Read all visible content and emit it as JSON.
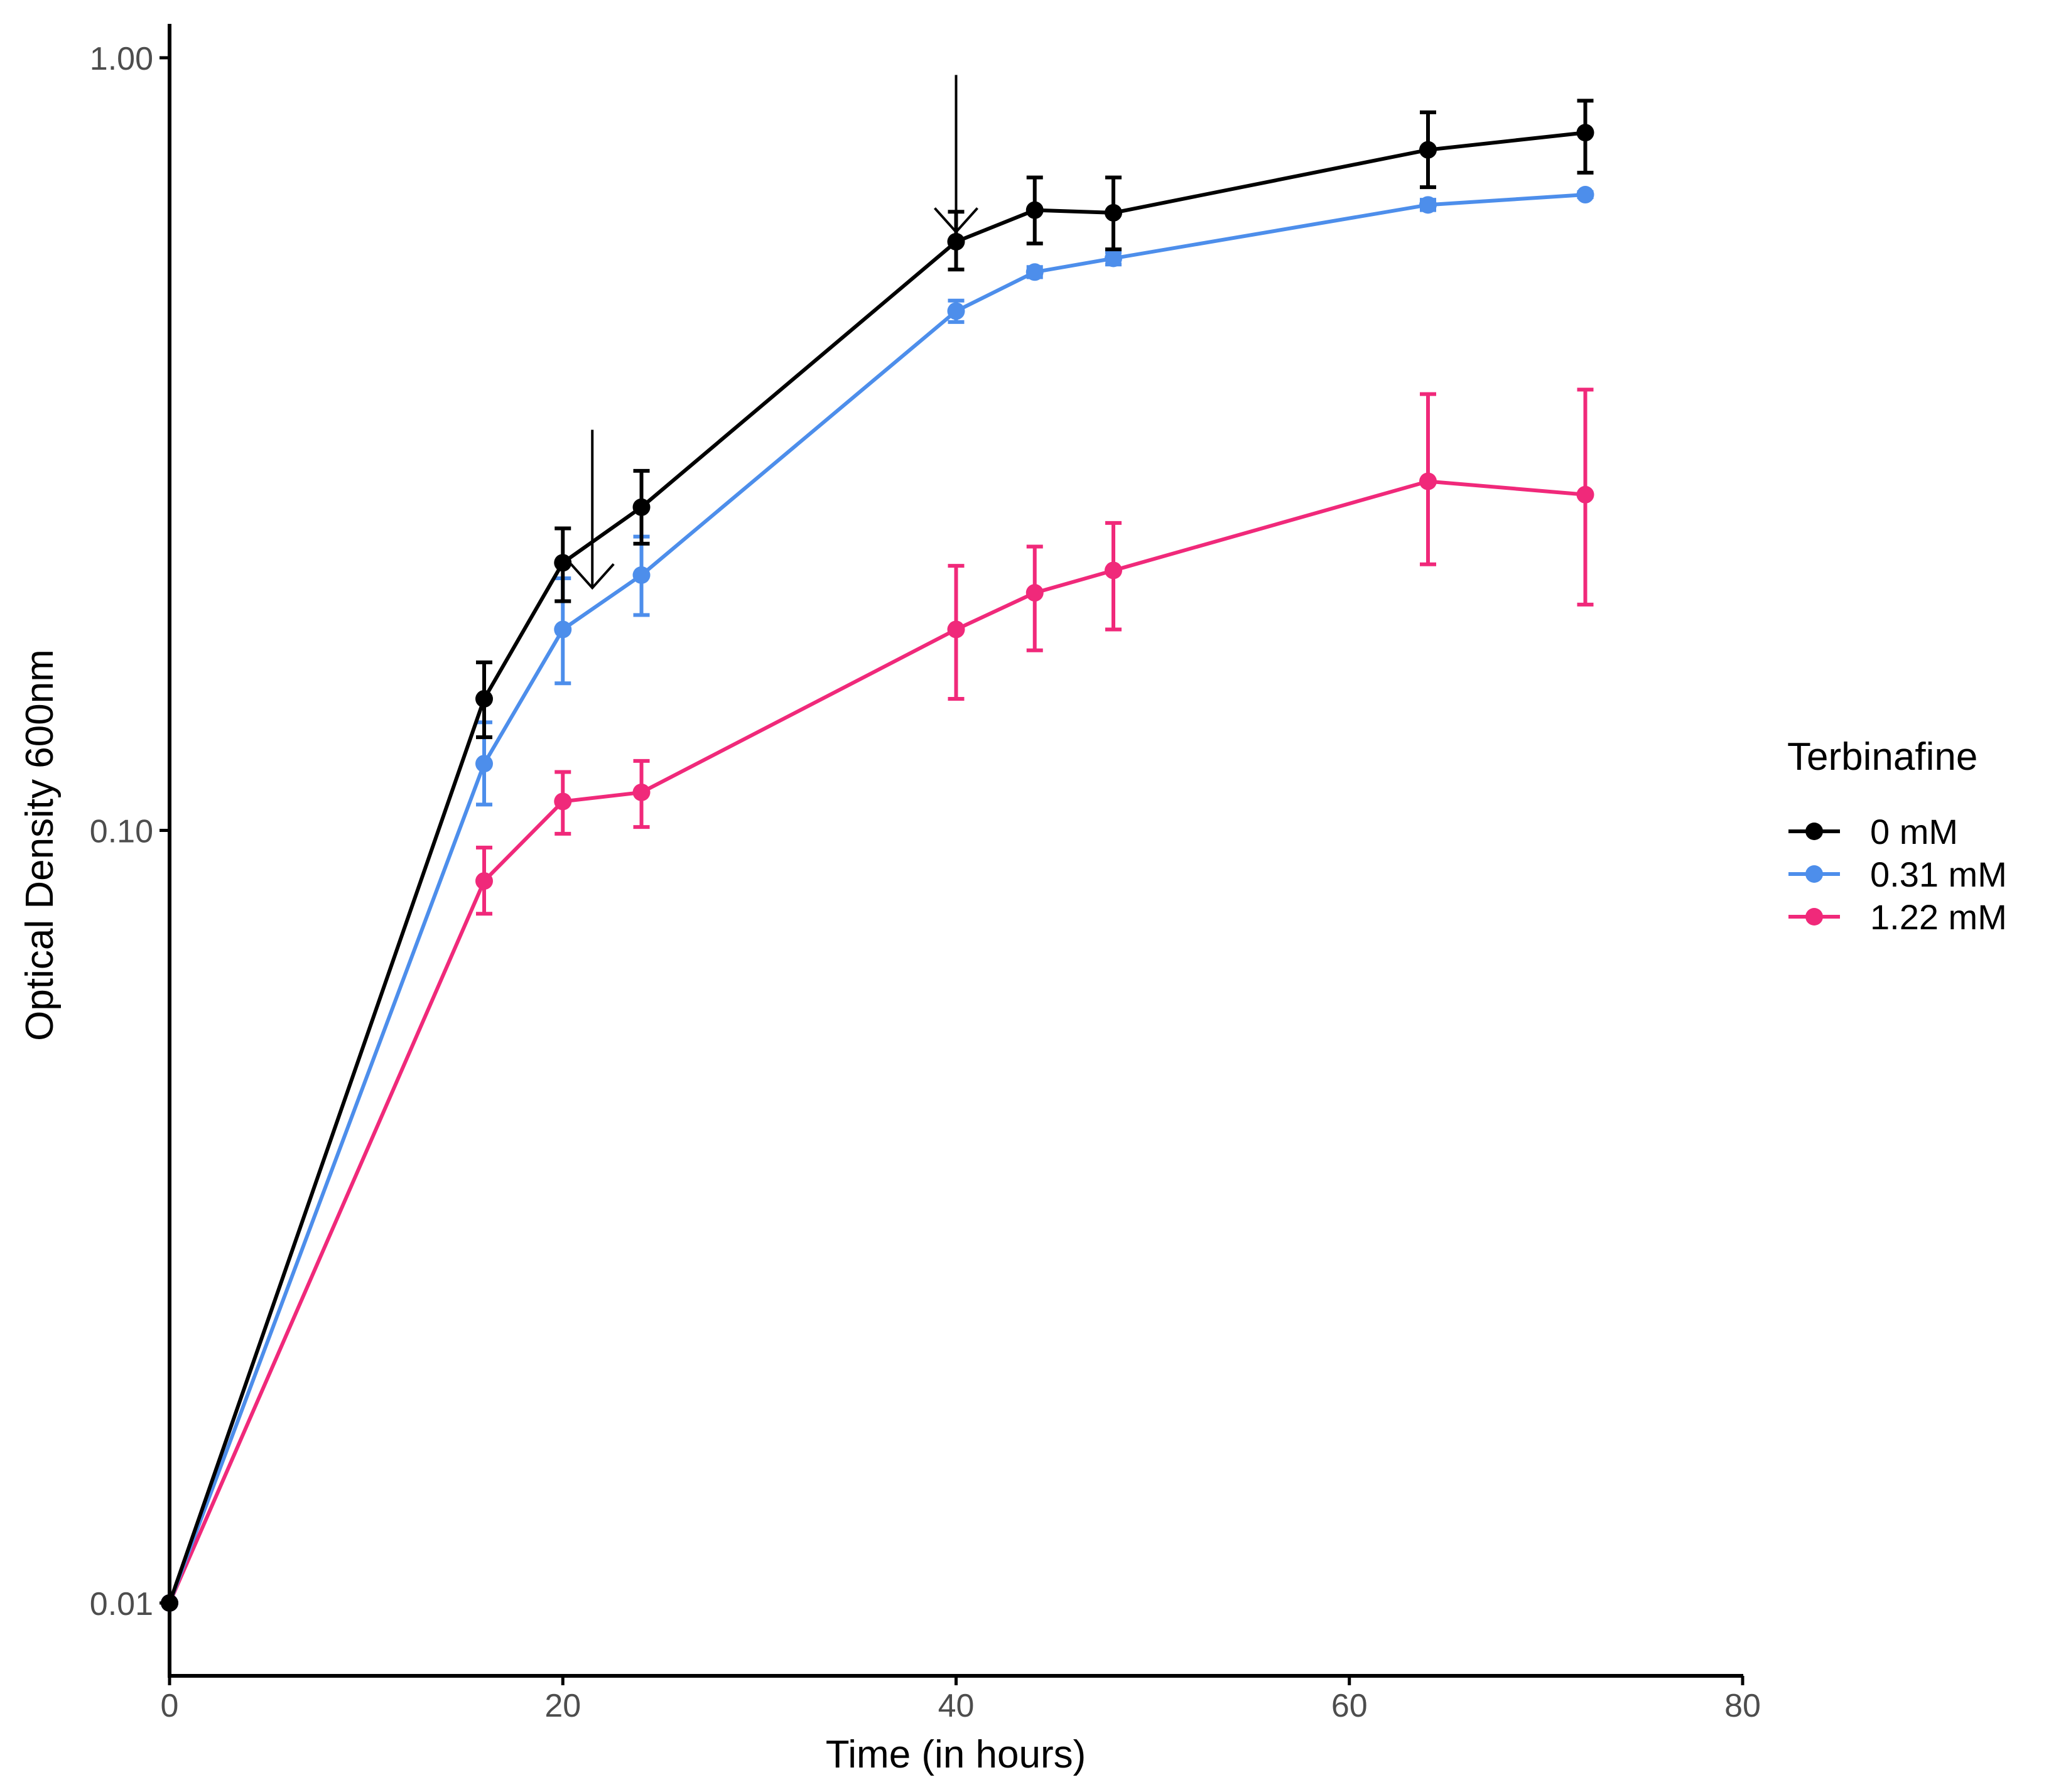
{
  "chart_data": {
    "type": "line",
    "title": "",
    "xlabel": "Time (in hours)",
    "ylabel": "Optical Density 600nm",
    "xlim": [
      0,
      80
    ],
    "ylim": [
      0.0083,
      1.05
    ],
    "yscale": "log",
    "x_ticks": [
      0,
      20,
      40,
      60,
      80
    ],
    "x_tick_labels": [
      "0",
      "20",
      "40",
      "60",
      "80"
    ],
    "y_ticks": [
      0.01,
      0.1,
      1.0
    ],
    "y_tick_labels": [
      "0.01",
      "0.10",
      "1.00"
    ],
    "grid": false,
    "legend": {
      "title": "Terbinafine",
      "position": "right"
    },
    "annotations": [
      {
        "type": "arrow-down",
        "x": 21.5,
        "y_top": 0.33,
        "y_bottom": 0.206
      },
      {
        "type": "arrow-down",
        "x": 40,
        "y_top": 0.95,
        "y_bottom": 0.595
      }
    ],
    "series": [
      {
        "name": "0 mM",
        "color": "#000000",
        "x": [
          0,
          16,
          20,
          24,
          40,
          44,
          48,
          64,
          72
        ],
        "y": [
          0.01,
          0.148,
          0.222,
          0.262,
          0.578,
          0.635,
          0.63,
          0.76,
          0.8
        ],
        "err_low": [
          0.01,
          0.132,
          0.198,
          0.235,
          0.532,
          0.575,
          0.565,
          0.68,
          0.71
        ],
        "err_high": [
          0.01,
          0.165,
          0.246,
          0.292,
          0.632,
          0.7,
          0.7,
          0.85,
          0.88
        ]
      },
      {
        "name": "0.31 mM",
        "color": "#4d8eeb",
        "x": [
          0,
          16,
          20,
          24,
          40,
          44,
          48,
          64,
          72
        ],
        "y": [
          0.01,
          0.122,
          0.182,
          0.214,
          0.47,
          0.528,
          0.55,
          0.645,
          0.665
        ],
        "err_low": [
          0.01,
          0.108,
          0.155,
          0.19,
          0.455,
          0.52,
          0.54,
          0.635,
          0.66
        ],
        "err_high": [
          0.01,
          0.138,
          0.212,
          0.24,
          0.485,
          0.536,
          0.56,
          0.655,
          0.67
        ]
      },
      {
        "name": "1.22 mM",
        "color": "#f0297a",
        "x": [
          0,
          16,
          20,
          24,
          40,
          44,
          48,
          64,
          72
        ],
        "y": [
          0.01,
          0.086,
          0.109,
          0.112,
          0.182,
          0.203,
          0.217,
          0.283,
          0.272
        ],
        "err_low": [
          0.01,
          0.078,
          0.099,
          0.101,
          0.148,
          0.171,
          0.182,
          0.221,
          0.196
        ],
        "err_high": [
          0.01,
          0.095,
          0.119,
          0.123,
          0.22,
          0.233,
          0.25,
          0.367,
          0.372
        ]
      }
    ]
  }
}
